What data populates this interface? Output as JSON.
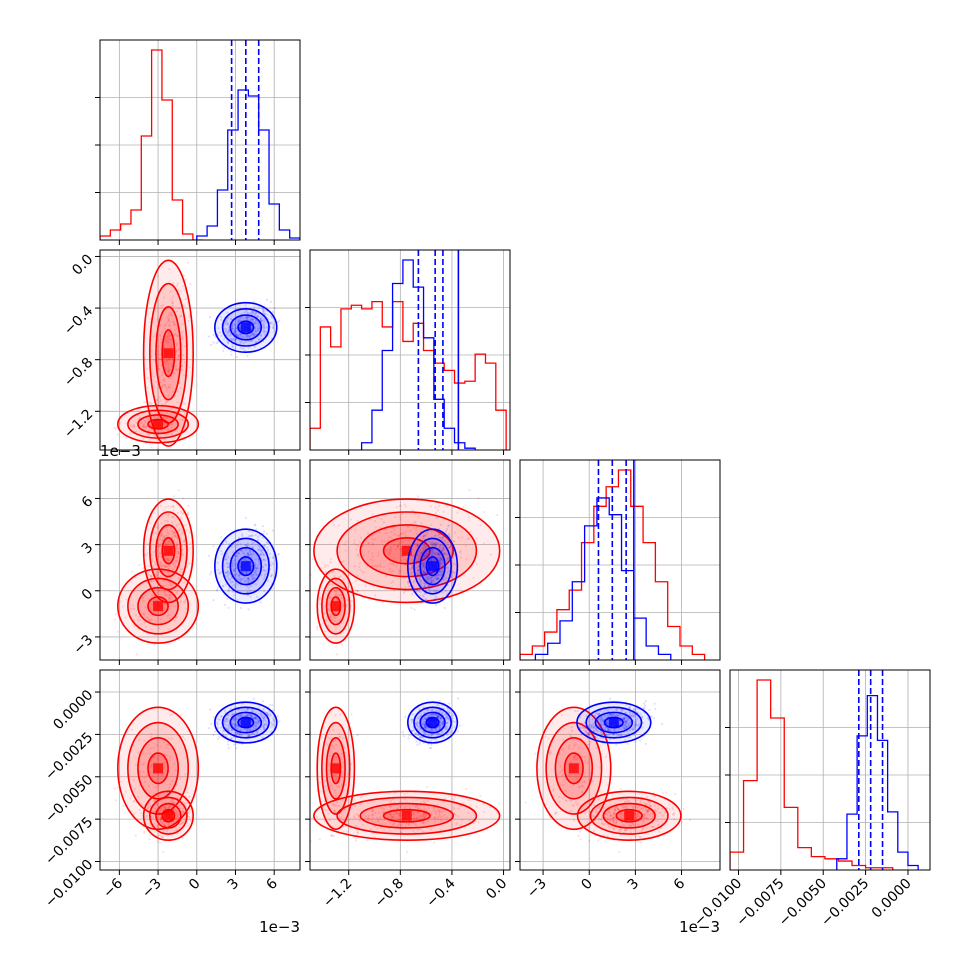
{
  "colors": {
    "red": "#ff0000",
    "blue": "#0000ff",
    "grid": "#b0b0b0",
    "frame": "#000000"
  },
  "chart_data": {
    "type": "corner",
    "title": "",
    "grid": true,
    "parameters": [
      {
        "name": "",
        "range": [
          -7.5,
          8.0
        ],
        "ticks": [
          -6,
          -3,
          0,
          3,
          6
        ],
        "tick_labels": [
          "−6",
          "−3",
          "0",
          "3",
          "6"
        ],
        "offset_label": "1e−3"
      },
      {
        "name": "",
        "range": [
          -1.5,
          0.05
        ],
        "ticks": [
          -1.2,
          -0.8,
          -0.4,
          0.0
        ],
        "tick_labels": [
          "−1.2",
          "−0.8",
          "−0.4",
          "0.0"
        ],
        "offset_label": "1e−3"
      },
      {
        "name": "",
        "range": [
          -4.5,
          8.5
        ],
        "ticks": [
          -3,
          0,
          3,
          6
        ],
        "tick_labels": [
          "−3",
          "0",
          "3",
          "6"
        ],
        "offset_label": "1e−3"
      },
      {
        "name": "",
        "range": [
          -0.0105,
          0.0013
        ],
        "ticks": [
          -0.01,
          -0.0075,
          -0.005,
          -0.0025,
          0.0
        ],
        "tick_labels": [
          "−0.0100",
          "−0.0075",
          "−0.0050",
          "−0.0025",
          "0.0000"
        ],
        "offset_label": ""
      }
    ],
    "row_tick_labels": {
      "1": [
        "0.0",
        "−0.4",
        "−0.8",
        "−1.2"
      ],
      "2": [
        "6",
        "3",
        "0",
        "−3"
      ],
      "3": [
        "0.0000",
        "−0.0025",
        "−0.0050",
        "−0.0075",
        "−0.0100"
      ]
    },
    "row_ticks": {
      "1": [
        0.0,
        -0.4,
        -0.8,
        -1.2
      ],
      "2": [
        6,
        3,
        0,
        -3
      ],
      "3": [
        0.0,
        -0.0025,
        -0.005,
        -0.0075,
        -0.01
      ]
    },
    "series": [
      {
        "color": "red",
        "clusters": [
          {
            "weight": 0.75,
            "mean": [
              -2.2,
              -0.75,
              2.6,
              -0.0073
            ],
            "sd": [
              0.8,
              0.3,
              1.4,
              0.0006
            ]
          },
          {
            "weight": 0.25,
            "mean": [
              -3.0,
              -1.3,
              -1.0,
              -0.0045
            ],
            "sd": [
              1.3,
              0.06,
              1.0,
              0.0015
            ]
          }
        ],
        "histograms": [
          {
            "edges": [
              -7.5,
              -6.7,
              -5.9,
              -5.1,
              -4.3,
              -3.5,
              -2.7,
              -1.9,
              -1.1,
              -0.3,
              0.5
            ],
            "counts": [
              2,
              5,
              8,
              15,
              52,
              95,
              70,
              20,
              3,
              0
            ]
          },
          {
            "edges": [
              -1.5,
              -1.42,
              -1.34,
              -1.26,
              -1.18,
              -1.1,
              -1.02,
              -0.94,
              -0.86,
              -0.78,
              -0.7,
              -0.62,
              -0.54,
              -0.46,
              -0.38,
              -0.3,
              -0.22,
              -0.14,
              -0.06,
              0.02
            ],
            "counts": [
              12,
              68,
              57,
              78,
              80,
              78,
              82,
              68,
              82,
              60,
              70,
              55,
              48,
              44,
              37,
              38,
              53,
              48,
              22
            ]
          },
          {
            "edges": [
              -4.5,
              -3.7,
              -2.9,
              -2.1,
              -1.3,
              -0.5,
              0.3,
              1.1,
              1.9,
              2.7,
              3.5,
              4.3,
              5.1,
              5.9,
              6.7,
              7.5
            ],
            "counts": [
              2,
              5,
              10,
              18,
              25,
              42,
              55,
              62,
              68,
              55,
              42,
              28,
              12,
              5,
              2
            ]
          },
          {
            "edges": [
              -0.0105,
              -0.0097,
              -0.0089,
              -0.0081,
              -0.0073,
              -0.0065,
              -0.0057,
              -0.0049,
              -0.0041,
              -0.0033,
              -0.0025,
              -0.0017,
              -0.0009
            ],
            "counts": [
              8,
              40,
              85,
              68,
              28,
              10,
              6,
              5,
              4,
              2,
              1,
              1
            ]
          }
        ]
      },
      {
        "color": "blue",
        "clusters": [
          {
            "weight": 1.0,
            "mean": [
              3.8,
              -0.55,
              1.6,
              -0.0018
            ],
            "sd": [
              1.0,
              0.08,
              1.0,
              0.0005
            ]
          }
        ],
        "histograms": [
          {
            "edges": [
              0.0,
              0.8,
              1.6,
              2.4,
              3.2,
              4.0,
              4.8,
              5.6,
              6.4,
              7.2,
              8.0
            ],
            "counts": [
              2,
              7,
              25,
              55,
              75,
              72,
              55,
              18,
              5,
              1
            ]
          },
          {
            "edges": [
              -1.1,
              -1.02,
              -0.94,
              -0.86,
              -0.78,
              -0.7,
              -0.62,
              -0.54,
              -0.46,
              -0.38,
              -0.3,
              -0.22
            ],
            "counts": [
              4,
              22,
              55,
              92,
              105,
              90,
              62,
              28,
              12,
              4,
              1
            ]
          },
          {
            "edges": [
              -3.5,
              -2.7,
              -1.9,
              -1.1,
              -0.3,
              0.5,
              1.3,
              2.1,
              2.9,
              3.7,
              4.5,
              5.3
            ],
            "counts": [
              2,
              6,
              14,
              28,
              48,
              58,
              52,
              32,
              15,
              5,
              2
            ]
          },
          {
            "edges": [
              -0.0042,
              -0.0036,
              -0.003,
              -0.0024,
              -0.0018,
              -0.0012,
              -0.0006,
              0.0,
              0.0006
            ],
            "counts": [
              5,
              25,
              60,
              78,
              58,
              26,
              8,
              2
            ]
          }
        ],
        "quantiles": [
          [
            2.7,
            3.8,
            4.8
          ],
          [
            -0.66,
            -0.53,
            -0.47
          ],
          [
            0.6,
            1.5,
            2.4
          ],
          [
            -0.0029,
            -0.0022,
            -0.0015
          ]
        ],
        "truth": [
          null,
          -0.35,
          2.9,
          null
        ]
      }
    ]
  }
}
